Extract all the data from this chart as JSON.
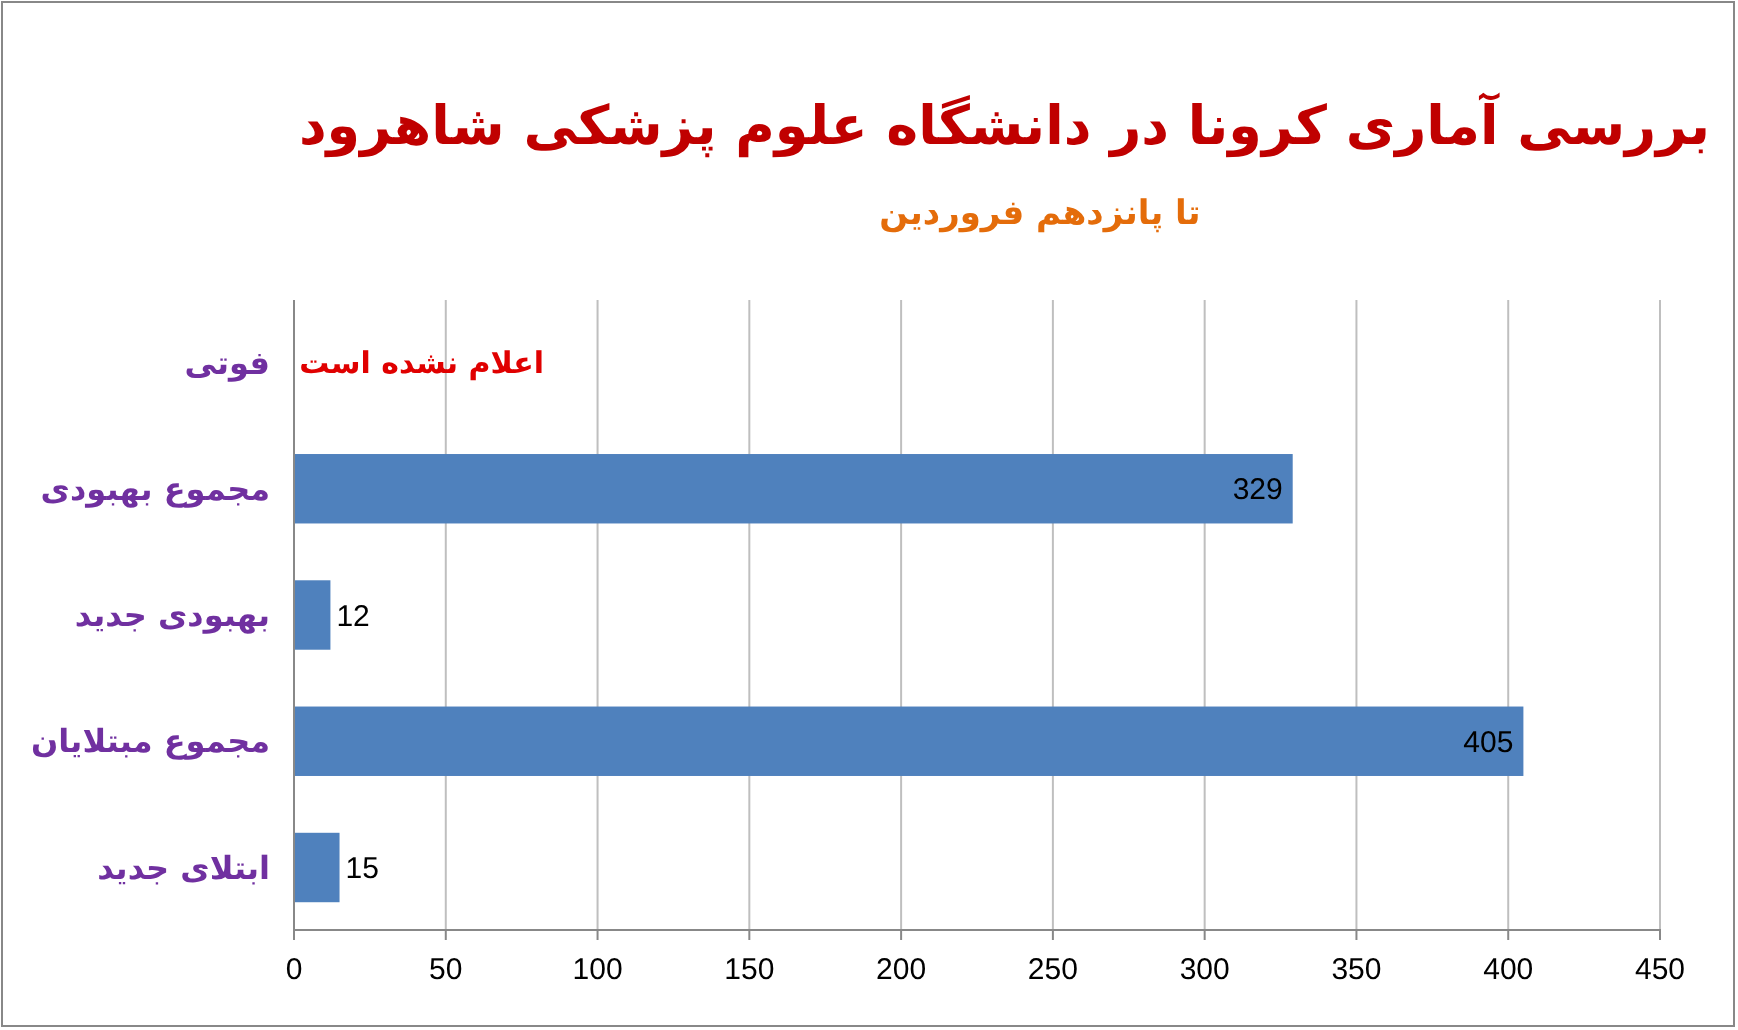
{
  "chart_data": {
    "type": "bar",
    "orientation": "horizontal",
    "title": "بررسی آماری کرونا در دانشگاه علوم پزشکی شاهرود",
    "subtitle": "تا پانزدهم فروردین",
    "categories": [
      "فوتی",
      "مجموع بهبودی",
      "بهبودی جدید",
      "مجموع مبتلایان",
      "ابتلای جدید"
    ],
    "values": [
      null,
      329,
      12,
      405,
      15
    ],
    "color": "#4f81bd",
    "xlim": [
      0,
      450
    ],
    "xticks": [
      0,
      50,
      100,
      150,
      200,
      250,
      300,
      350,
      400,
      450
    ],
    "grid": "x",
    "data_labels": true,
    "annotations": [
      "اعلام نشده است"
    ]
  }
}
